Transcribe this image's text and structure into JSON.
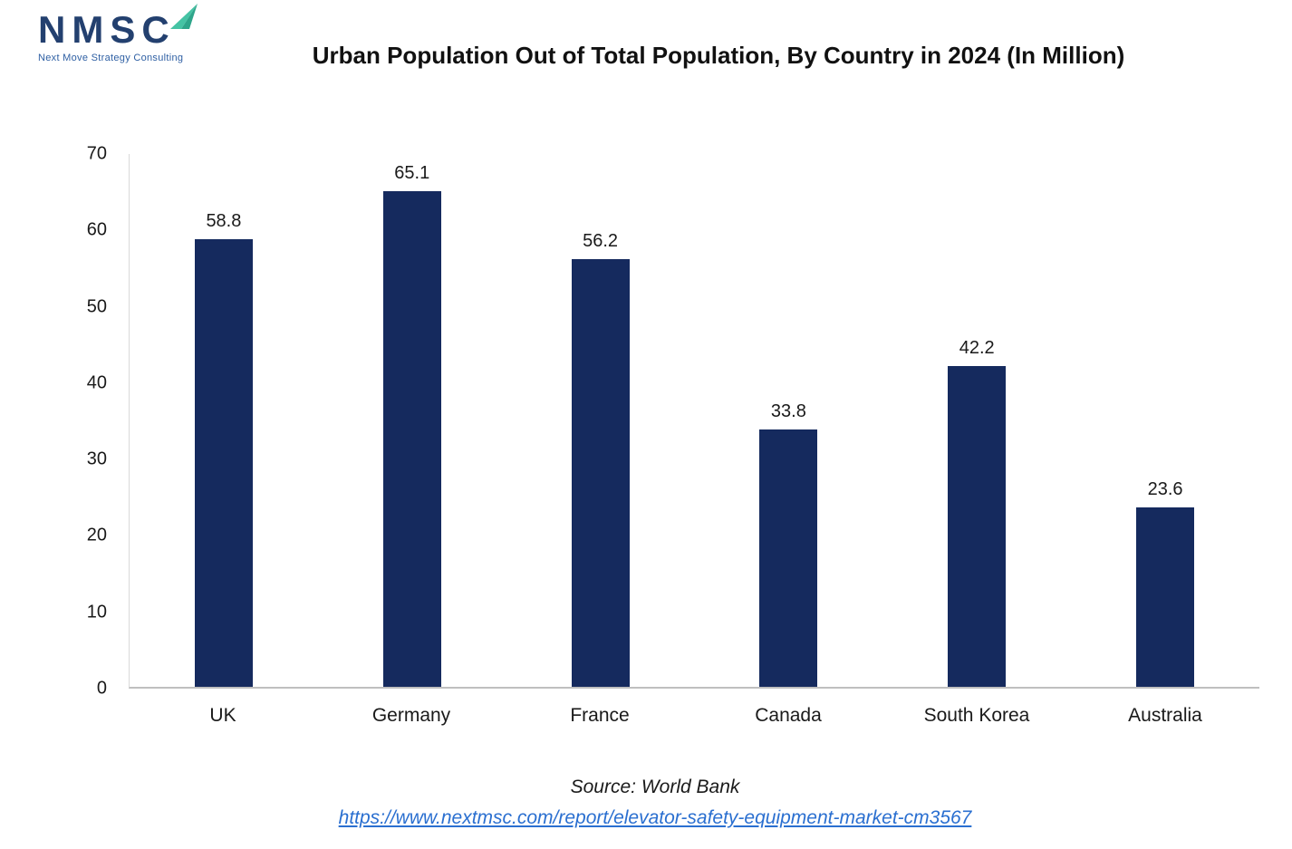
{
  "logo": {
    "text": "NMSC",
    "subtext": "Next Move Strategy Consulting",
    "navy": "#23406f",
    "teal": "#45c3a4"
  },
  "header": {
    "title": "Urban Population Out of Total Population, By Country in 2024 (In Million)"
  },
  "footer": {
    "source": "Source: World Bank",
    "link": "https://www.nextmsc.com/report/elevator-safety-equipment-market-cm3567"
  },
  "chart_data": {
    "type": "bar",
    "title": "Urban Population Out of Total Population, By Country in 2024 (In Million)",
    "categories": [
      "UK",
      "Germany",
      "France",
      "Canada",
      "South Korea",
      "Australia"
    ],
    "values": [
      58.8,
      65.1,
      56.2,
      33.8,
      42.2,
      23.6
    ],
    "value_labels": [
      "58.8",
      "65.1",
      "56.2",
      "33.8",
      "42.2",
      "23.6"
    ],
    "xlabel": "",
    "ylabel": "",
    "ylim": [
      0,
      70
    ],
    "yticks": [
      0,
      10,
      20,
      30,
      40,
      50,
      60,
      70
    ],
    "bar_color": "#152a5e",
    "grid": false,
    "legend": false
  }
}
